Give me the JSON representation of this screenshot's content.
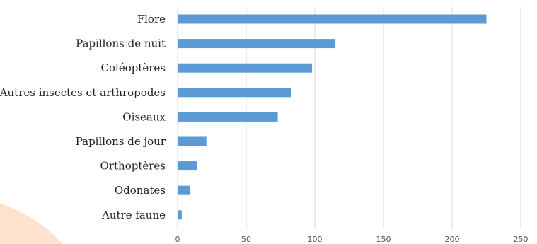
{
  "chart_data": {
    "type": "bar",
    "orientation": "horizontal",
    "categories": [
      "Flore",
      "Papillons de nuit",
      "Coléoptères",
      "Autres insectes et arthropodes",
      "Oiseaux",
      "Papillons de jour",
      "Orthoptères",
      "Odonates",
      "Autre faune"
    ],
    "values": [
      225,
      115,
      98,
      83,
      73,
      21,
      14,
      9,
      3
    ],
    "xlim": [
      0,
      250
    ],
    "x_ticks": [
      0,
      50,
      100,
      150,
      200,
      250
    ],
    "grid": true,
    "legend": "none",
    "title": "",
    "xlabel": "",
    "ylabel": "",
    "colors": {
      "bar": "#5b9bd5",
      "grid": "#d9d9d9",
      "watermark": "#fde3cf"
    }
  }
}
